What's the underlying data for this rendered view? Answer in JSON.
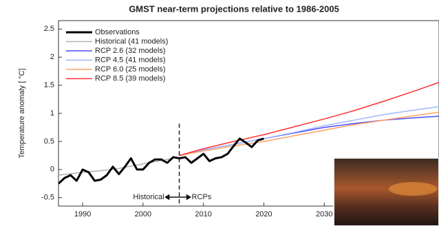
{
  "chart_data": {
    "type": "line",
    "title": "GMST near-term projections relative to 1986-2005",
    "ylabel": "Temperature anomaly [ °C]",
    "xlim": [
      1986,
      2049
    ],
    "ylim": [
      -0.65,
      2.65
    ],
    "xticks": [
      1990,
      2000,
      2010,
      2020,
      2030
    ],
    "yticks": [
      -0.5,
      0,
      0.5,
      1,
      1.5,
      2,
      2.5
    ],
    "divider_x": 2006,
    "annotations": [
      "Historical",
      "RCPs"
    ],
    "legend": "upper left",
    "series": [
      {
        "name": "Observations",
        "color": "#000000",
        "width": 3,
        "x": [
          1986,
          1987,
          1988,
          1989,
          1990,
          1991,
          1992,
          1993,
          1994,
          1995,
          1996,
          1997,
          1998,
          1999,
          2000,
          2001,
          2002,
          2003,
          2004,
          2005,
          2006,
          2007,
          2008,
          2009,
          2010,
          2011,
          2012,
          2013,
          2014,
          2015,
          2016,
          2017,
          2018,
          2019,
          2020
        ],
        "values": [
          -0.25,
          -0.15,
          -0.1,
          -0.2,
          0.0,
          -0.05,
          -0.2,
          -0.18,
          -0.1,
          0.05,
          -0.08,
          0.05,
          0.2,
          0.0,
          0.0,
          0.12,
          0.18,
          0.18,
          0.12,
          0.22,
          0.2,
          0.22,
          0.12,
          0.2,
          0.28,
          0.15,
          0.2,
          0.22,
          0.28,
          0.42,
          0.55,
          0.48,
          0.4,
          0.52,
          0.55
        ]
      },
      {
        "name": "Historical (41 models)",
        "color": "#b0b0b0",
        "width": 1.5,
        "x": [
          1986,
          1990,
          1995,
          2000,
          2005
        ],
        "values": [
          -0.1,
          -0.05,
          0.0,
          0.1,
          0.2
        ]
      },
      {
        "name": "RCP 2.6 (32 models)",
        "color": "#4a4aff",
        "width": 1.5,
        "x": [
          2006,
          2010,
          2015,
          2020,
          2025,
          2030,
          2035,
          2040,
          2045,
          2049
        ],
        "values": [
          0.25,
          0.35,
          0.45,
          0.55,
          0.65,
          0.75,
          0.82,
          0.88,
          0.92,
          0.95
        ]
      },
      {
        "name": "RCP 4.5 (41 models)",
        "color": "#9fb6ff",
        "width": 1.5,
        "x": [
          2006,
          2010,
          2015,
          2020,
          2025,
          2030,
          2035,
          2040,
          2045,
          2049
        ],
        "values": [
          0.25,
          0.35,
          0.45,
          0.55,
          0.66,
          0.78,
          0.88,
          0.98,
          1.06,
          1.12
        ]
      },
      {
        "name": "RCP 6.0 (25 models)",
        "color": "#ffa060",
        "width": 1.5,
        "x": [
          2006,
          2010,
          2015,
          2020,
          2025,
          2030,
          2035,
          2040,
          2045,
          2049
        ],
        "values": [
          0.25,
          0.33,
          0.42,
          0.5,
          0.6,
          0.7,
          0.8,
          0.88,
          0.96,
          1.02
        ]
      },
      {
        "name": "RCP 8.5 (39 models)",
        "color": "#ff3030",
        "width": 1.5,
        "x": [
          2006,
          2010,
          2015,
          2020,
          2025,
          2030,
          2035,
          2040,
          2045,
          2049
        ],
        "values": [
          0.25,
          0.37,
          0.5,
          0.62,
          0.76,
          0.9,
          1.05,
          1.22,
          1.4,
          1.55
        ]
      }
    ]
  }
}
